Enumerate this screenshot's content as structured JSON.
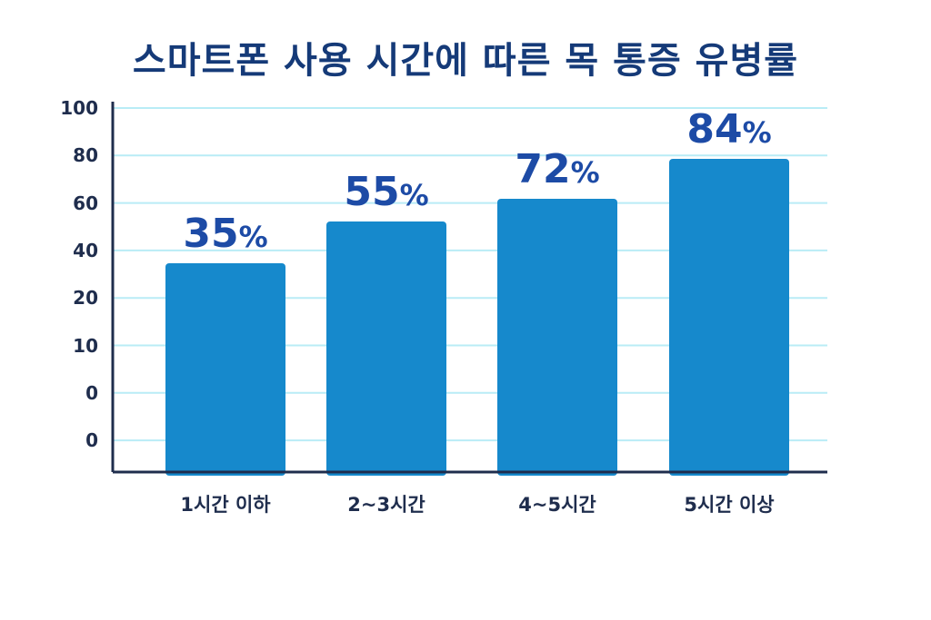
{
  "chart_data": {
    "type": "bar",
    "title": "스마트폰 사용 시간에 따른 목 통증 유병률",
    "xlabel": "",
    "ylabel": "",
    "categories": [
      "1시간 이하",
      "2~3시간",
      "4~5시간",
      "5시간 이상"
    ],
    "values": [
      35,
      55,
      72,
      84
    ],
    "data_labels": [
      "35%",
      "55%",
      "72%",
      "84%"
    ],
    "y_tick_labels": [
      "100",
      "80",
      "60",
      "40",
      "20",
      "10",
      "0",
      "0"
    ],
    "grid": true,
    "legend": "none",
    "colors": {
      "bar": "#1689cc",
      "gridline": "#b9ecf6",
      "axis": "#1f2d4d",
      "title": "#153a78",
      "data_label": "#1d4ba6"
    }
  }
}
